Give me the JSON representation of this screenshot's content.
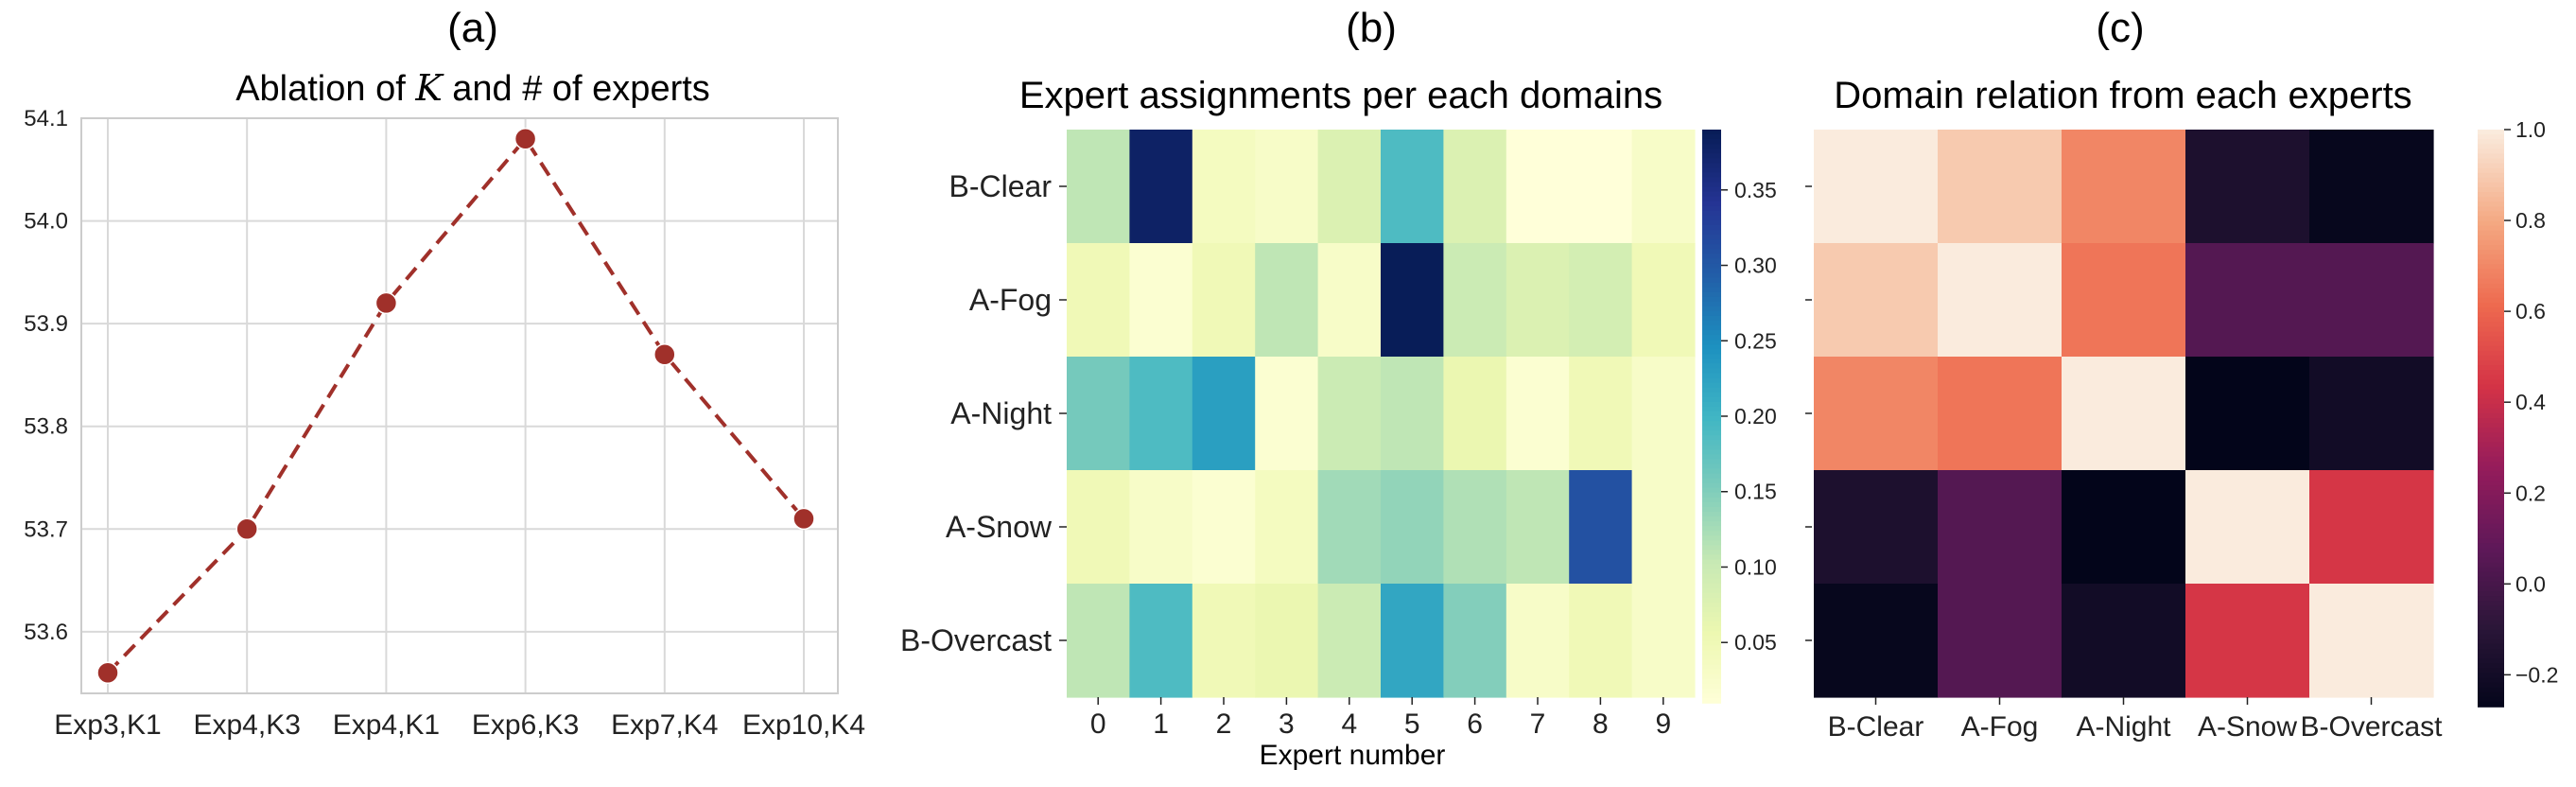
{
  "panels": {
    "a": {
      "label": "(a)"
    },
    "b": {
      "label": "(b)"
    },
    "c": {
      "label": "(c)"
    }
  },
  "chart_data": [
    {
      "type": "line",
      "title": "Ablation of K and # of experts",
      "xlabel": "",
      "ylabel": "",
      "categories": [
        "Exp3,K1",
        "Exp4,K3",
        "Exp4,K1",
        "Exp6,K3",
        "Exp7,K4",
        "Exp10,K4"
      ],
      "series": [
        {
          "values": [
            53.56,
            53.7,
            53.92,
            54.08,
            53.87,
            53.71
          ]
        }
      ],
      "ylim": [
        53.54,
        54.1
      ],
      "yticks": [
        53.6,
        53.7,
        53.8,
        53.9,
        54.0,
        54.1
      ],
      "grid": true,
      "line_style": "dashed",
      "marker": "circle",
      "colors": {
        "line": "#a0302a",
        "marker": "#a0302a",
        "grid": "#d9d9d9",
        "frame": "#cccccc"
      }
    },
    {
      "type": "heatmap",
      "title": "Expert assignments per each domains",
      "xlabel": "Expert number",
      "ylabel": "",
      "x_categories": [
        "0",
        "1",
        "2",
        "3",
        "4",
        "5",
        "6",
        "7",
        "8",
        "9"
      ],
      "y_categories": [
        "B-Clear",
        "A-Fog",
        "A-Night",
        "A-Snow",
        "B-Overcast"
      ],
      "values": [
        [
          0.11,
          0.38,
          0.04,
          0.03,
          0.08,
          0.19,
          0.08,
          0.01,
          0.01,
          0.03
        ],
        [
          0.05,
          0.02,
          0.05,
          0.11,
          0.03,
          0.39,
          0.1,
          0.08,
          0.09,
          0.05
        ],
        [
          0.16,
          0.19,
          0.23,
          0.02,
          0.1,
          0.11,
          0.06,
          0.02,
          0.05,
          0.03
        ],
        [
          0.05,
          0.03,
          0.02,
          0.04,
          0.13,
          0.14,
          0.12,
          0.11,
          0.31,
          0.03
        ],
        [
          0.11,
          0.19,
          0.05,
          0.06,
          0.1,
          0.22,
          0.15,
          0.03,
          0.05,
          0.03
        ]
      ],
      "colorscale": "YlGnBu",
      "vmin": 0.01,
      "vmax": 0.39,
      "colorbar_ticks": [
        0.05,
        0.1,
        0.15,
        0.2,
        0.25,
        0.3,
        0.35
      ],
      "colorbar_tick_labels": [
        "0.05",
        "0.10",
        "0.15",
        "0.20",
        "0.25",
        "0.30",
        "0.35"
      ]
    },
    {
      "type": "heatmap",
      "title": "Domain relation from each experts",
      "xlabel": "",
      "ylabel": "",
      "x_categories": [
        "B-Clear",
        "A-Fog",
        "A-Night",
        "A-Snow",
        "B-Overcast"
      ],
      "y_categories": [
        "",
        "",
        "",
        "",
        ""
      ],
      "values": [
        [
          1.0,
          0.9,
          0.7,
          -0.15,
          -0.25
        ],
        [
          0.9,
          1.0,
          0.65,
          0.05,
          0.05
        ],
        [
          0.7,
          0.65,
          1.0,
          -0.27,
          -0.2
        ],
        [
          -0.15,
          0.05,
          -0.27,
          1.0,
          0.45
        ],
        [
          -0.25,
          0.05,
          -0.2,
          0.45,
          1.0
        ]
      ],
      "colorscale": "rocket",
      "vmin": -0.27,
      "vmax": 1.0,
      "colorbar_ticks": [
        -0.2,
        0.0,
        0.2,
        0.4,
        0.6,
        0.8,
        1.0
      ],
      "colorbar_tick_labels": [
        "−0.2",
        "0.0",
        "0.2",
        "0.4",
        "0.6",
        "0.8",
        "1.0"
      ]
    }
  ]
}
